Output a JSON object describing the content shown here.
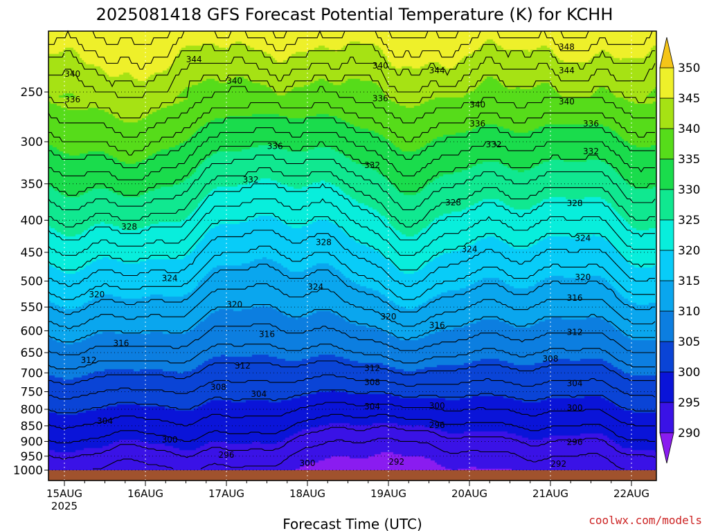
{
  "chart_data": {
    "type": "heatmap",
    "title": "2025081418 GFS Forecast Potential Temperature (K) for KCHH",
    "xlabel": "Forecast Time (UTC)",
    "ylabel": "",
    "credit": "coolwx.com/models",
    "x_ticks": [
      "15AUG",
      "16AUG",
      "17AUG",
      "18AUG",
      "19AUG",
      "20AUG",
      "21AUG",
      "22AUG"
    ],
    "x_tick_sublabel": "2025",
    "y_ticks": [
      250,
      300,
      350,
      400,
      450,
      500,
      550,
      600,
      650,
      700,
      750,
      800,
      850,
      900,
      950,
      1000
    ],
    "y_axis_inverted": true,
    "colorbar": {
      "ticks": [
        290,
        295,
        300,
        305,
        310,
        315,
        320,
        325,
        330,
        335,
        340,
        345,
        350
      ],
      "bins": [
        {
          "lo": 285,
          "hi": 290,
          "color": "#8a1cf0"
        },
        {
          "lo": 290,
          "hi": 295,
          "color": "#3a12e6"
        },
        {
          "lo": 295,
          "hi": 300,
          "color": "#0a14d8"
        },
        {
          "lo": 300,
          "hi": 305,
          "color": "#0a44d6"
        },
        {
          "lo": 305,
          "hi": 310,
          "color": "#0c7ee0"
        },
        {
          "lo": 310,
          "hi": 315,
          "color": "#0aa6ee"
        },
        {
          "lo": 315,
          "hi": 320,
          "color": "#08ccf8"
        },
        {
          "lo": 320,
          "hi": 325,
          "color": "#08eedc"
        },
        {
          "lo": 325,
          "hi": 330,
          "color": "#10e890"
        },
        {
          "lo": 330,
          "hi": 335,
          "color": "#1adc4c"
        },
        {
          "lo": 335,
          "hi": 340,
          "color": "#56dc1a"
        },
        {
          "lo": 340,
          "hi": 345,
          "color": "#a6e214"
        },
        {
          "lo": 345,
          "hi": 350,
          "color": "#eef02a"
        },
        {
          "lo": 350,
          "hi": 355,
          "color": "#f5c518"
        }
      ]
    },
    "ground_color": "#a0522d",
    "contour_labels": [
      {
        "value": 348,
        "day": 6.2,
        "p": 212
      },
      {
        "value": 344,
        "day": 1.6,
        "p": 222
      },
      {
        "value": 344,
        "day": 4.6,
        "p": 231
      },
      {
        "value": 344,
        "day": 6.2,
        "p": 231
      },
      {
        "value": 340,
        "day": 0.1,
        "p": 234
      },
      {
        "value": 340,
        "day": 2.1,
        "p": 240
      },
      {
        "value": 340,
        "day": 3.9,
        "p": 227
      },
      {
        "value": 340,
        "day": 5.1,
        "p": 262
      },
      {
        "value": 340,
        "day": 6.2,
        "p": 259
      },
      {
        "value": 336,
        "day": 0.1,
        "p": 257
      },
      {
        "value": 336,
        "day": 2.6,
        "p": 305
      },
      {
        "value": 336,
        "day": 3.9,
        "p": 256
      },
      {
        "value": 336,
        "day": 5.1,
        "p": 281
      },
      {
        "value": 336,
        "day": 6.5,
        "p": 281
      },
      {
        "value": 332,
        "day": 2.3,
        "p": 345
      },
      {
        "value": 332,
        "day": 3.8,
        "p": 327
      },
      {
        "value": 332,
        "day": 5.3,
        "p": 303
      },
      {
        "value": 332,
        "day": 6.5,
        "p": 311
      },
      {
        "value": 328,
        "day": 0.8,
        "p": 410
      },
      {
        "value": 328,
        "day": 3.2,
        "p": 434
      },
      {
        "value": 328,
        "day": 4.8,
        "p": 375
      },
      {
        "value": 328,
        "day": 6.3,
        "p": 376
      },
      {
        "value": 324,
        "day": 1.3,
        "p": 495
      },
      {
        "value": 324,
        "day": 3.1,
        "p": 511
      },
      {
        "value": 324,
        "day": 5.0,
        "p": 445
      },
      {
        "value": 324,
        "day": 6.4,
        "p": 427
      },
      {
        "value": 320,
        "day": 0.4,
        "p": 525
      },
      {
        "value": 320,
        "day": 2.1,
        "p": 545
      },
      {
        "value": 320,
        "day": 4.0,
        "p": 570
      },
      {
        "value": 320,
        "day": 6.4,
        "p": 493
      },
      {
        "value": 316,
        "day": 0.7,
        "p": 628
      },
      {
        "value": 316,
        "day": 2.5,
        "p": 608
      },
      {
        "value": 316,
        "day": 4.6,
        "p": 588
      },
      {
        "value": 316,
        "day": 6.3,
        "p": 532
      },
      {
        "value": 312,
        "day": 0.3,
        "p": 668
      },
      {
        "value": 312,
        "day": 2.2,
        "p": 682
      },
      {
        "value": 312,
        "day": 3.8,
        "p": 688
      },
      {
        "value": 312,
        "day": 6.3,
        "p": 603
      },
      {
        "value": 308,
        "day": 1.9,
        "p": 738
      },
      {
        "value": 308,
        "day": 3.8,
        "p": 725
      },
      {
        "value": 308,
        "day": 6.0,
        "p": 665
      },
      {
        "value": 304,
        "day": 0.5,
        "p": 835
      },
      {
        "value": 304,
        "day": 2.4,
        "p": 757
      },
      {
        "value": 304,
        "day": 3.8,
        "p": 792
      },
      {
        "value": 304,
        "day": 6.3,
        "p": 728
      },
      {
        "value": 300,
        "day": 1.3,
        "p": 895
      },
      {
        "value": 300,
        "day": 3.0,
        "p": 975
      },
      {
        "value": 300,
        "day": 4.6,
        "p": 790
      },
      {
        "value": 300,
        "day": 6.3,
        "p": 796
      },
      {
        "value": 296,
        "day": 2.0,
        "p": 946
      },
      {
        "value": 296,
        "day": 4.6,
        "p": 848
      },
      {
        "value": 296,
        "day": 6.3,
        "p": 902
      },
      {
        "value": 292,
        "day": 4.1,
        "p": 970
      },
      {
        "value": 292,
        "day": 6.1,
        "p": 977
      }
    ]
  }
}
